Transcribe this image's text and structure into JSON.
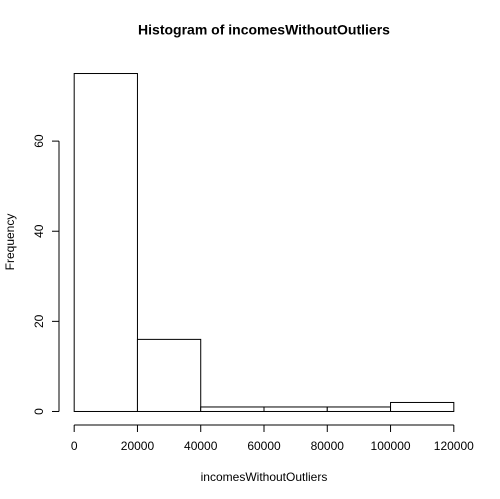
{
  "chart_data": {
    "type": "histogram",
    "title": "Histogram of incomesWithoutOutliers",
    "x_label": "incomesWithoutOutliers",
    "y_label": "Frequency",
    "bins": [
      0,
      20000,
      40000,
      60000,
      80000,
      100000,
      120000
    ],
    "values": [
      75,
      16,
      1,
      1,
      1,
      2
    ],
    "color": "#ffffff",
    "xlim": [
      -4800,
      124800
    ],
    "ylim": [
      -3,
      78
    ],
    "xticks": [
      0,
      20000,
      40000,
      60000,
      80000,
      100000,
      120000
    ],
    "yticks": [
      0,
      20,
      40,
      60
    ]
  }
}
